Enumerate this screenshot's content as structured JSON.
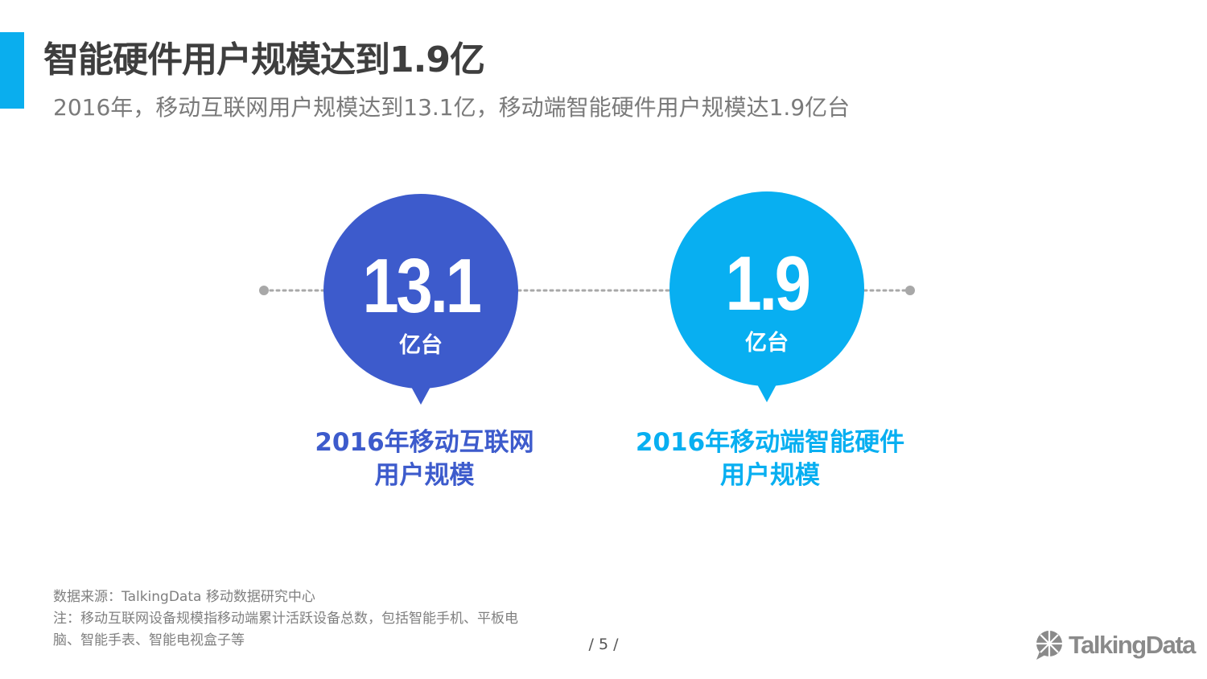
{
  "header": {
    "title": "智能硬件用户规模达到1.9亿",
    "subtitle": "2016年，移动互联网用户规模达到13.1亿，移动端智能硬件用户规模达1.9亿台"
  },
  "stats": [
    {
      "value": "13.1",
      "unit": "亿台",
      "caption_line1": "2016年移动互联网",
      "caption_line2": "用户规模",
      "color": "#3d5bcc"
    },
    {
      "value": "1.9",
      "unit": "亿台",
      "caption_line1": "2016年移动端智能硬件",
      "caption_line2": "用户规模",
      "color": "#08aff1"
    }
  ],
  "footer": {
    "source": "数据来源：TalkingData 移动数据研究中心",
    "note_line1": "注：移动互联网设备规模指移动端累计活跃设备总数，包括智能手机、平板电",
    "note_line2": "脑、智能手表、智能电视盒子等",
    "page_number": "/ 5 /",
    "logo_text": "TalkingData",
    "logo_icon": "chat-bubble-globe-icon"
  },
  "colors": {
    "accent": "#0aaeee",
    "primary_blue": "#3d5bcc",
    "light_blue": "#08aff1",
    "title": "#3e3e3e"
  }
}
